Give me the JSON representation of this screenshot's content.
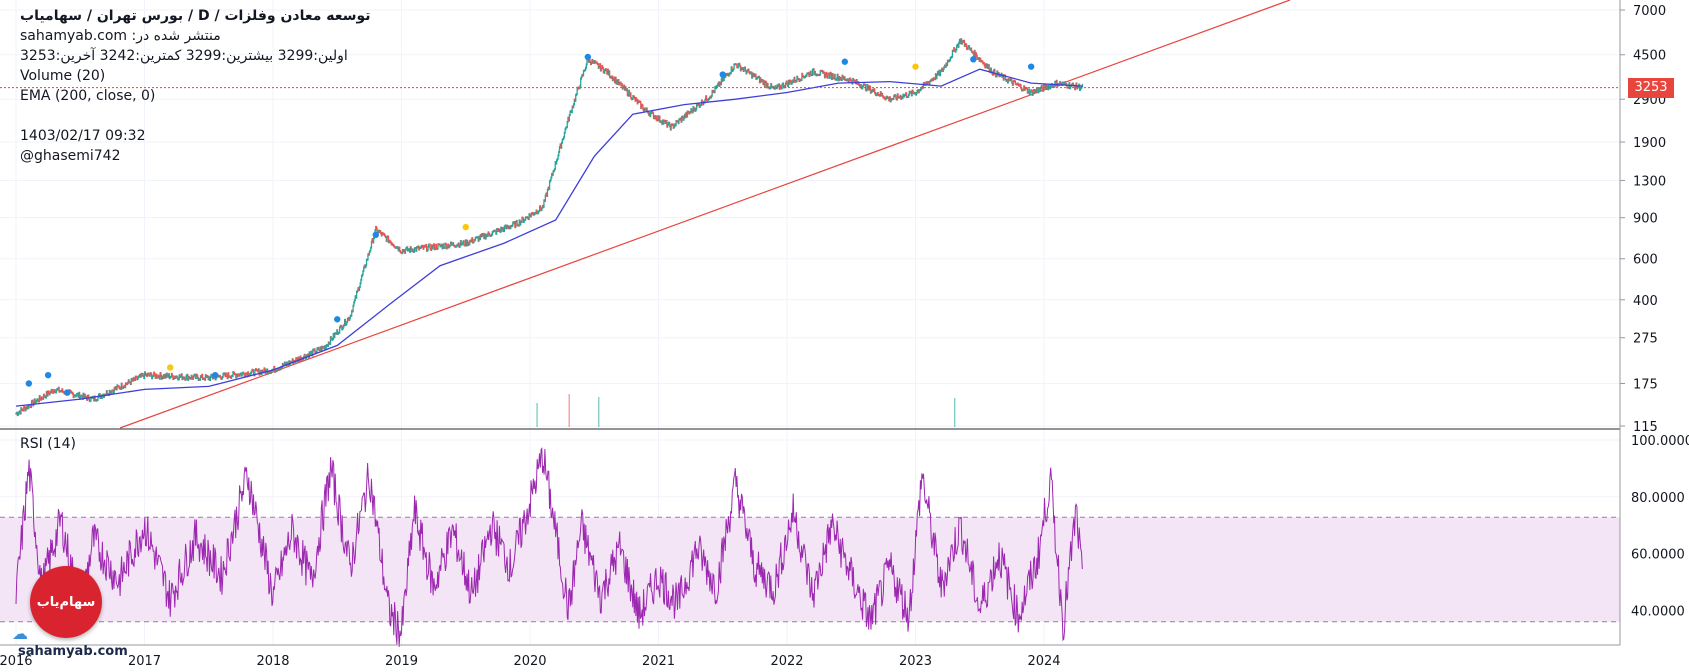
{
  "header": {
    "title": "توسعه معادن وفلزات  /  D  /  بورس تهران / سهامیاب",
    "published": "sahamyab.com :منتشر شده در",
    "ohlc": "اولین:3299  بیشترین:3299  کمترین:3242  آخرین:3253",
    "volume": "Volume (20)",
    "ema": "EMA (200, close, 0)",
    "date": "1403/02/17 09:32",
    "user": "@ghasemi742"
  },
  "price_tag": "3253",
  "rsi_label": "RSI (14)",
  "watermark": {
    "logo": "سهام‌یاب",
    "site": "sahamyab.com"
  },
  "colors": {
    "candle_up": "#26a69a",
    "candle_down": "#ef5350",
    "ema": "#3f3fd8",
    "trendline": "#e8453c",
    "rsi": "#9c27b0",
    "rsi_band": "#f3e5f5",
    "price_line": "#e8453c",
    "marker_blue": "#1e88e5",
    "marker_yellow": "#f9c80e"
  },
  "chart_data": [
    {
      "type": "line",
      "panel": "price",
      "scale": "log",
      "x_ticks": [
        "2016",
        "2017",
        "2018",
        "2019",
        "2020",
        "2021",
        "2022",
        "2023",
        "2024"
      ],
      "y_ticks": [
        115,
        175,
        275,
        400,
        600,
        900,
        1300,
        1900,
        2900,
        4500,
        7000
      ],
      "ylim": [
        115,
        7000
      ],
      "series": [
        {
          "values_label": "price",
          "x": [
            2016.0,
            2016.3,
            2016.6,
            2017.0,
            2017.5,
            2018.0,
            2018.4,
            2018.6,
            2018.8,
            2019.0,
            2019.5,
            2019.9,
            2020.1,
            2020.3,
            2020.45,
            2020.6,
            2020.9,
            2021.1,
            2021.4,
            2021.6,
            2021.9,
            2022.2,
            2022.5,
            2022.8,
            2023.0,
            2023.2,
            2023.35,
            2023.6,
            2023.9,
            2024.1,
            2024.3
          ],
          "values": [
            130,
            165,
            150,
            190,
            185,
            200,
            250,
            340,
            800,
            650,
            700,
            850,
            1000,
            2400,
            4300,
            3800,
            2600,
            2200,
            3000,
            4100,
            3200,
            3800,
            3500,
            2900,
            3100,
            3800,
            5200,
            3800,
            3100,
            3400,
            3253
          ]
        },
        {
          "values_label": "EMA (200, close, 0)",
          "x": [
            2016.0,
            2016.5,
            2017.0,
            2017.5,
            2018.0,
            2018.5,
            2018.9,
            2019.3,
            2019.8,
            2020.2,
            2020.5,
            2020.8,
            2021.2,
            2021.6,
            2022.0,
            2022.4,
            2022.8,
            2023.2,
            2023.5,
            2023.9,
            2024.3
          ],
          "values": [
            140,
            150,
            165,
            170,
            200,
            255,
            380,
            560,
            700,
            880,
            1650,
            2500,
            2750,
            2900,
            3100,
            3400,
            3450,
            3300,
            3900,
            3400,
            3300
          ]
        }
      ]
    },
    {
      "type": "line",
      "panel": "RSI (14)",
      "x_ticks": [
        "2016",
        "2017",
        "2018",
        "2019",
        "2020",
        "2021",
        "2022",
        "2023",
        "2024"
      ],
      "y_ticks": [
        40.0,
        60.0,
        80.0,
        100.0
      ],
      "band": [
        30,
        70
      ],
      "series": [
        {
          "values_label": "RSI (14)",
          "x": [
            2016.0,
            2016.1,
            2016.2,
            2016.35,
            2016.5,
            2016.6,
            2016.8,
            2017.0,
            2017.2,
            2017.4,
            2017.6,
            2017.8,
            2018.0,
            2018.15,
            2018.3,
            2018.45,
            2018.6,
            2018.75,
            2018.9,
            2019.0,
            2019.1,
            2019.25,
            2019.4,
            2019.55,
            2019.7,
            2019.85,
            2020.0,
            2020.1,
            2020.3,
            2020.4,
            2020.55,
            2020.7,
            2020.85,
            2021.0,
            2021.15,
            2021.3,
            2021.45,
            2021.6,
            2021.75,
            2021.9,
            2022.05,
            2022.2,
            2022.35,
            2022.5,
            2022.65,
            2022.8,
            2022.95,
            2023.05,
            2023.2,
            2023.35,
            2023.5,
            2023.65,
            2023.8,
            2023.95,
            2024.05,
            2024.15,
            2024.25,
            2024.3
          ],
          "values": [
            45,
            90,
            48,
            72,
            40,
            65,
            50,
            70,
            44,
            66,
            52,
            88,
            45,
            68,
            50,
            90,
            55,
            88,
            40,
            32,
            75,
            48,
            68,
            45,
            70,
            55,
            78,
            95,
            40,
            70,
            45,
            62,
            38,
            52,
            42,
            62,
            48,
            85,
            55,
            48,
            75,
            45,
            70,
            52,
            36,
            55,
            38,
            88,
            48,
            70,
            40,
            60,
            38,
            58,
            86,
            35,
            75,
            50
          ]
        }
      ]
    }
  ]
}
